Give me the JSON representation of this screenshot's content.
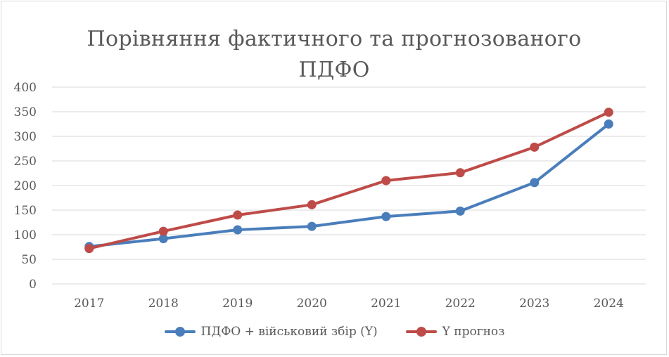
{
  "chart_data": {
    "type": "line",
    "title": "Порівняння фактичного та прогнозованого ПДФО",
    "x": [
      "2017",
      "2018",
      "2019",
      "2020",
      "2021",
      "2022",
      "2023",
      "2024"
    ],
    "ylim": [
      0,
      400
    ],
    "yticks": [
      0,
      50,
      100,
      150,
      200,
      250,
      300,
      350,
      400
    ],
    "grid": true,
    "legend_position": "bottom",
    "series": [
      {
        "name": "ПДФО + військовий збір (Y)",
        "color": "#4a7ebb",
        "values": [
          76,
          92,
          110,
          117,
          137,
          148,
          206,
          325
        ]
      },
      {
        "name": "Y прогноз",
        "color": "#be4b48",
        "values": [
          72,
          107,
          140,
          161,
          210,
          226,
          278,
          349
        ]
      }
    ]
  }
}
